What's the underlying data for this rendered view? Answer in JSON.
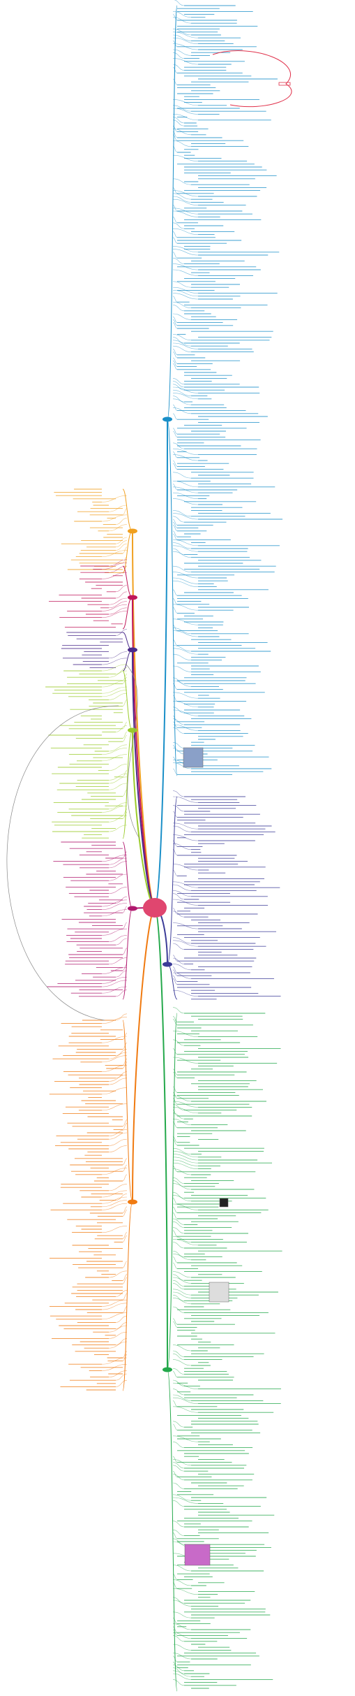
{
  "central_topic": {
    "label": "",
    "color": "#e0466f"
  },
  "branches": [
    {
      "side": "right",
      "color": "#1a8fc8",
      "label": ""
    },
    {
      "side": "right",
      "color": "#3c3c98",
      "label": ""
    },
    {
      "side": "right",
      "color": "#23a84a",
      "label": ""
    },
    {
      "side": "left",
      "color": "#f0a020",
      "label": ""
    },
    {
      "side": "left",
      "color": "#c0185a",
      "label": ""
    },
    {
      "side": "left",
      "color": "#4a2a8a",
      "label": ""
    },
    {
      "side": "left",
      "color": "#9acb2a",
      "label": ""
    },
    {
      "side": "left",
      "color": "#b0186e",
      "label": ""
    },
    {
      "side": "left",
      "color": "#f07a10",
      "label": ""
    }
  ],
  "images": [
    {
      "name": "network-thumbnail",
      "color": "#8aa0c8"
    },
    {
      "name": "qr-code-thumbnail",
      "color": "#222222"
    },
    {
      "name": "sphere-thumbnail",
      "color": "#dddddd"
    },
    {
      "name": "colorful-chart-thumbnail",
      "color": "#c86ac8"
    }
  ]
}
